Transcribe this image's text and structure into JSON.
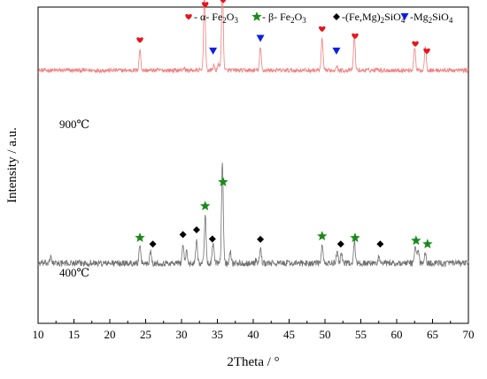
{
  "chart_data": {
    "type": "line",
    "xlabel": "2Theta / °",
    "ylabel": "Intensity / a.u.",
    "xlim": [
      10,
      70
    ],
    "xticks": [
      10,
      15,
      20,
      25,
      30,
      35,
      40,
      45,
      50,
      55,
      60,
      65,
      70
    ],
    "ylim": [
      0,
      100
    ],
    "grid": false,
    "legend_position": "top",
    "legend": [
      {
        "marker": "heart",
        "color": "#e8141c",
        "label_main": "- α- Fe",
        "sub1": "2",
        "mid1": "O",
        "sub2": "3",
        "tail": ""
      },
      {
        "marker": "star",
        "color": "#1a8a1a",
        "label_main": "- β- Fe",
        "sub1": "2",
        "mid1": "O",
        "sub2": "3",
        "tail": ""
      },
      {
        "marker": "diamond",
        "color": "#000000",
        "label_main": "-(Fe,Mg)",
        "sub1": "2",
        "mid1": "SiO",
        "sub2": "4",
        "tail": ""
      },
      {
        "marker": "triangle-down",
        "color": "#0a1ee6",
        "label_main": "-Mg",
        "sub1": "2",
        "mid1": "SiO",
        "sub2": "4",
        "tail": ""
      }
    ],
    "series": [
      {
        "name": "900℃",
        "color": "#f08080",
        "baseline": 80,
        "noise": 0.7,
        "peaks": [
          [
            24.2,
            6.5
          ],
          [
            33.2,
            25.0
          ],
          [
            35.7,
            27.0
          ],
          [
            34.5,
            1.5
          ],
          [
            41.0,
            7.0
          ],
          [
            49.6,
            10.0
          ],
          [
            51.6,
            1.5
          ],
          [
            54.1,
            11.0
          ],
          [
            62.5,
            7.5
          ],
          [
            64.0,
            8.0
          ],
          [
            30.3,
            0.8
          ],
          [
            57.3,
            0.8
          ],
          [
            35.2,
            2.2
          ],
          [
            24.4,
            0.0
          ]
        ],
        "markers": [
          {
            "x": 24.2,
            "type": "heart"
          },
          {
            "x": 33.3,
            "type": "heart"
          },
          {
            "x": 35.8,
            "type": "heart"
          },
          {
            "x": 34.4,
            "type": "triangle-down"
          },
          {
            "x": 41.0,
            "type": "triangle-down"
          },
          {
            "x": 49.6,
            "type": "heart"
          },
          {
            "x": 51.6,
            "type": "triangle-down"
          },
          {
            "x": 54.2,
            "type": "heart"
          },
          {
            "x": 62.6,
            "type": "heart"
          },
          {
            "x": 64.2,
            "type": "heart"
          }
        ]
      },
      {
        "name": "400℃",
        "color": "#707070",
        "baseline": 19,
        "noise": 1.0,
        "peaks": [
          [
            11.8,
            2.0
          ],
          [
            24.2,
            5.0
          ],
          [
            25.7,
            4.0
          ],
          [
            30.2,
            6.0
          ],
          [
            30.7,
            3.5
          ],
          [
            32.1,
            7.5
          ],
          [
            33.3,
            15.0
          ],
          [
            34.4,
            6.5
          ],
          [
            35.7,
            32.0
          ],
          [
            36.8,
            4.0
          ],
          [
            41.0,
            4.5
          ],
          [
            49.6,
            5.5
          ],
          [
            51.7,
            4.0
          ],
          [
            52.3,
            3.5
          ],
          [
            54.1,
            7.0
          ],
          [
            57.5,
            2.0
          ],
          [
            62.6,
            5.5
          ],
          [
            63.0,
            4.5
          ],
          [
            64.0,
            3.0
          ],
          [
            40.4,
            1.0
          ]
        ],
        "markers": [
          {
            "x": 24.2,
            "type": "star"
          },
          {
            "x": 26.0,
            "type": "diamond"
          },
          {
            "x": 30.2,
            "type": "diamond"
          },
          {
            "x": 32.1,
            "type": "diamond"
          },
          {
            "x": 33.3,
            "type": "star"
          },
          {
            "x": 34.3,
            "type": "diamond"
          },
          {
            "x": 35.8,
            "type": "star"
          },
          {
            "x": 41.0,
            "type": "diamond"
          },
          {
            "x": 49.6,
            "type": "star"
          },
          {
            "x": 52.2,
            "type": "diamond"
          },
          {
            "x": 54.2,
            "type": "star"
          },
          {
            "x": 57.7,
            "type": "diamond"
          },
          {
            "x": 62.7,
            "type": "star"
          },
          {
            "x": 64.3,
            "type": "star"
          }
        ]
      }
    ]
  }
}
